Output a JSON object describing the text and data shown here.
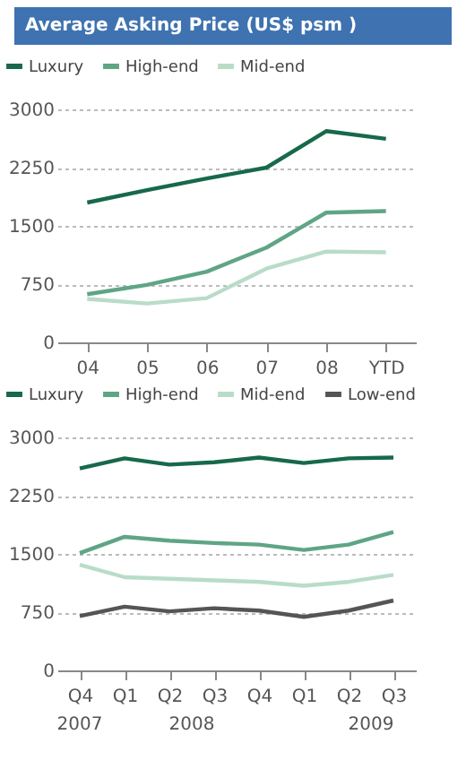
{
  "chart_data": [
    {
      "type": "line",
      "title": "Average Asking Price (US$ psm )",
      "categories": [
        "04",
        "05",
        "06",
        "07",
        "08",
        "YTD"
      ],
      "series": [
        {
          "name": "Luxury",
          "color": "#17694a",
          "values": [
            1800,
            1960,
            2110,
            2250,
            2720,
            2620
          ]
        },
        {
          "name": "High-end",
          "color": "#5fa585",
          "values": [
            620,
            740,
            910,
            1220,
            1670,
            1690
          ]
        },
        {
          "name": "Mid-end",
          "color": "#b9dcc9",
          "values": [
            560,
            500,
            570,
            950,
            1170,
            1160
          ]
        }
      ],
      "ylim": [
        0,
        3000
      ],
      "yticks": [
        0,
        750,
        1500,
        2250,
        3000
      ],
      "grid": "y",
      "legend": "top",
      "line_style": "solid",
      "marker": "none"
    },
    {
      "type": "line",
      "categories": [
        "Q4",
        "Q1",
        "Q2",
        "Q3",
        "Q4",
        "Q1",
        "Q2",
        "Q3"
      ],
      "series": [
        {
          "name": "Luxury",
          "color": "#17694a",
          "values": [
            2600,
            2730,
            2650,
            2680,
            2740,
            2670,
            2730,
            2740
          ]
        },
        {
          "name": "High-end",
          "color": "#5fa585",
          "values": [
            1510,
            1720,
            1670,
            1640,
            1620,
            1550,
            1620,
            1780
          ]
        },
        {
          "name": "Mid-end",
          "color": "#b9dcc9",
          "values": [
            1360,
            1200,
            1180,
            1160,
            1140,
            1090,
            1140,
            1230
          ]
        },
        {
          "name": "Low-end",
          "color": "#555555",
          "values": [
            700,
            820,
            760,
            800,
            770,
            690,
            770,
            900
          ]
        }
      ],
      "ylim": [
        0,
        3000
      ],
      "yticks": [
        0,
        750,
        1500,
        2250,
        3000
      ],
      "grid": "y",
      "legend": "top",
      "line_style": "solid",
      "marker": "none",
      "annotations": [
        "2007",
        "2008",
        "2009"
      ]
    }
  ]
}
